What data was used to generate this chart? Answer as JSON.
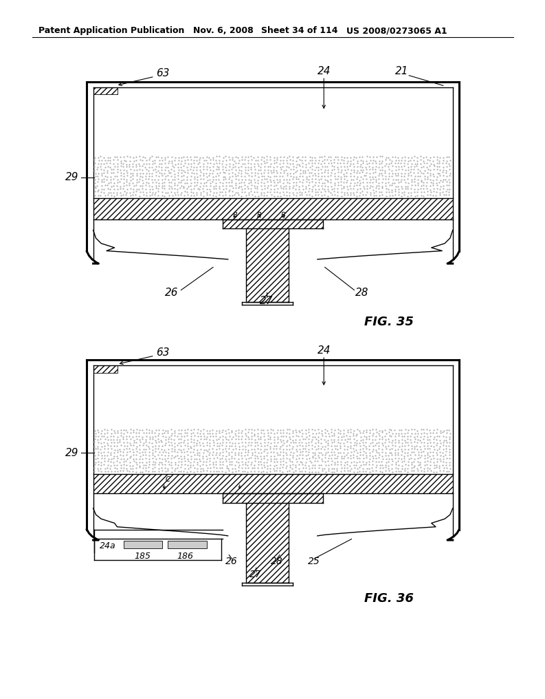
{
  "bg_color": "#ffffff",
  "header_text": "Patent Application Publication",
  "header_date": "Nov. 6, 2008",
  "header_sheet": "Sheet 34 of 114",
  "header_patent": "US 2008/0273065 A1",
  "fig35_label": "FIG. 35",
  "fig36_label": "FIG. 36",
  "line_color": "#000000"
}
